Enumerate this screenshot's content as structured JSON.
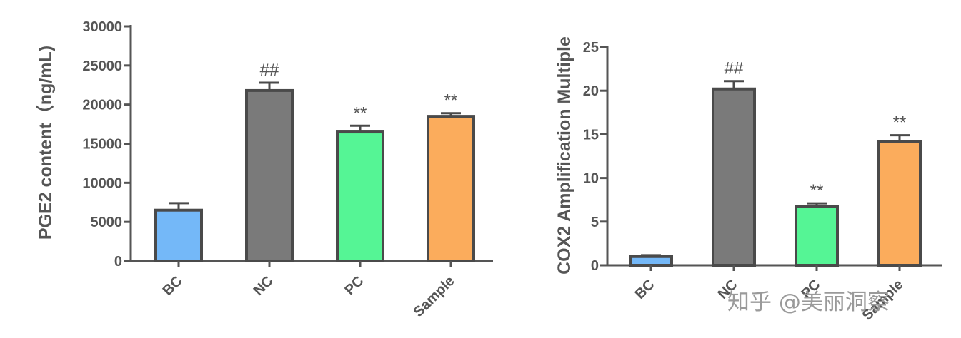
{
  "chart_data": [
    {
      "type": "bar",
      "ylabel": "PGE2 content（ng/mL)",
      "categories": [
        "BC",
        "NC",
        "PC",
        "Sample"
      ],
      "values": [
        6500,
        21800,
        16500,
        18500
      ],
      "errors": [
        900,
        1000,
        800,
        400
      ],
      "annotations": [
        "",
        "##",
        "**",
        "**"
      ],
      "colors": [
        "#74b8f8",
        "#7a7a7a",
        "#55f595",
        "#fbac5c"
      ],
      "ylim": [
        0,
        30000
      ],
      "yticks": [
        0,
        5000,
        10000,
        15000,
        20000,
        25000,
        30000
      ],
      "ytick_labels": [
        "0",
        "5000",
        "10000",
        "15000",
        "20000",
        "25000",
        "30000"
      ],
      "grid": false
    },
    {
      "type": "bar",
      "ylabel": "COX2 Amplification Multiple",
      "categories": [
        "BC",
        "NC",
        "PC",
        "Sample"
      ],
      "values": [
        1.0,
        20.2,
        6.7,
        14.2
      ],
      "errors": [
        0.15,
        0.9,
        0.4,
        0.7
      ],
      "annotations": [
        "",
        "##",
        "**",
        "**"
      ],
      "colors": [
        "#74b8f8",
        "#7a7a7a",
        "#55f595",
        "#fbac5c"
      ],
      "ylim": [
        0,
        25
      ],
      "yticks": [
        0,
        5,
        10,
        15,
        20,
        25
      ],
      "ytick_labels": [
        "0",
        "5",
        "10",
        "15",
        "20",
        "25"
      ],
      "grid": false
    }
  ],
  "watermark": "知乎 @美丽洞察",
  "colors": {
    "axis": "#555555",
    "bar_outline": "#4a4a4a"
  }
}
